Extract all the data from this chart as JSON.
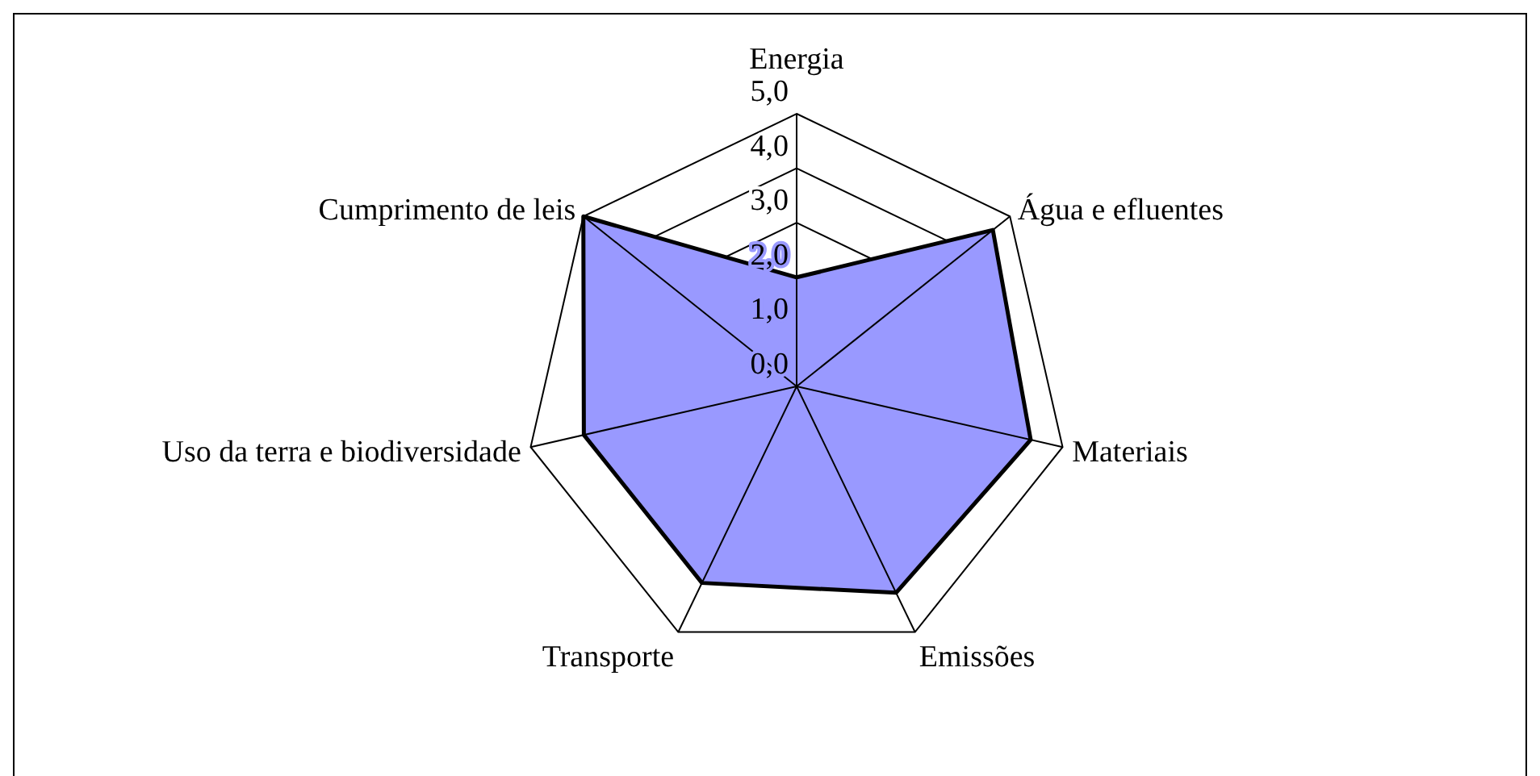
{
  "chart_data": {
    "type": "radar",
    "categories": [
      "Energia",
      "Água e efluentes",
      "Materiais",
      "Emissões",
      "Transporte",
      "Uso da terra e biodiversidade",
      "Cumprimento de leis"
    ],
    "series": [
      {
        "color": "#9999ff",
        "values": [
          2.0,
          4.6,
          4.4,
          4.2,
          4.0,
          4.0,
          5.0
        ]
      }
    ],
    "ylim": [
      0,
      5
    ],
    "yticks": [
      {
        "value": 0,
        "label": "0,0"
      },
      {
        "value": 1,
        "label": "1,0"
      },
      {
        "value": 2,
        "label": "2,0"
      },
      {
        "value": 3,
        "label": "3,0"
      },
      {
        "value": 4,
        "label": "4,0"
      },
      {
        "value": 5,
        "label": "5,0"
      }
    ],
    "grid": true
  }
}
